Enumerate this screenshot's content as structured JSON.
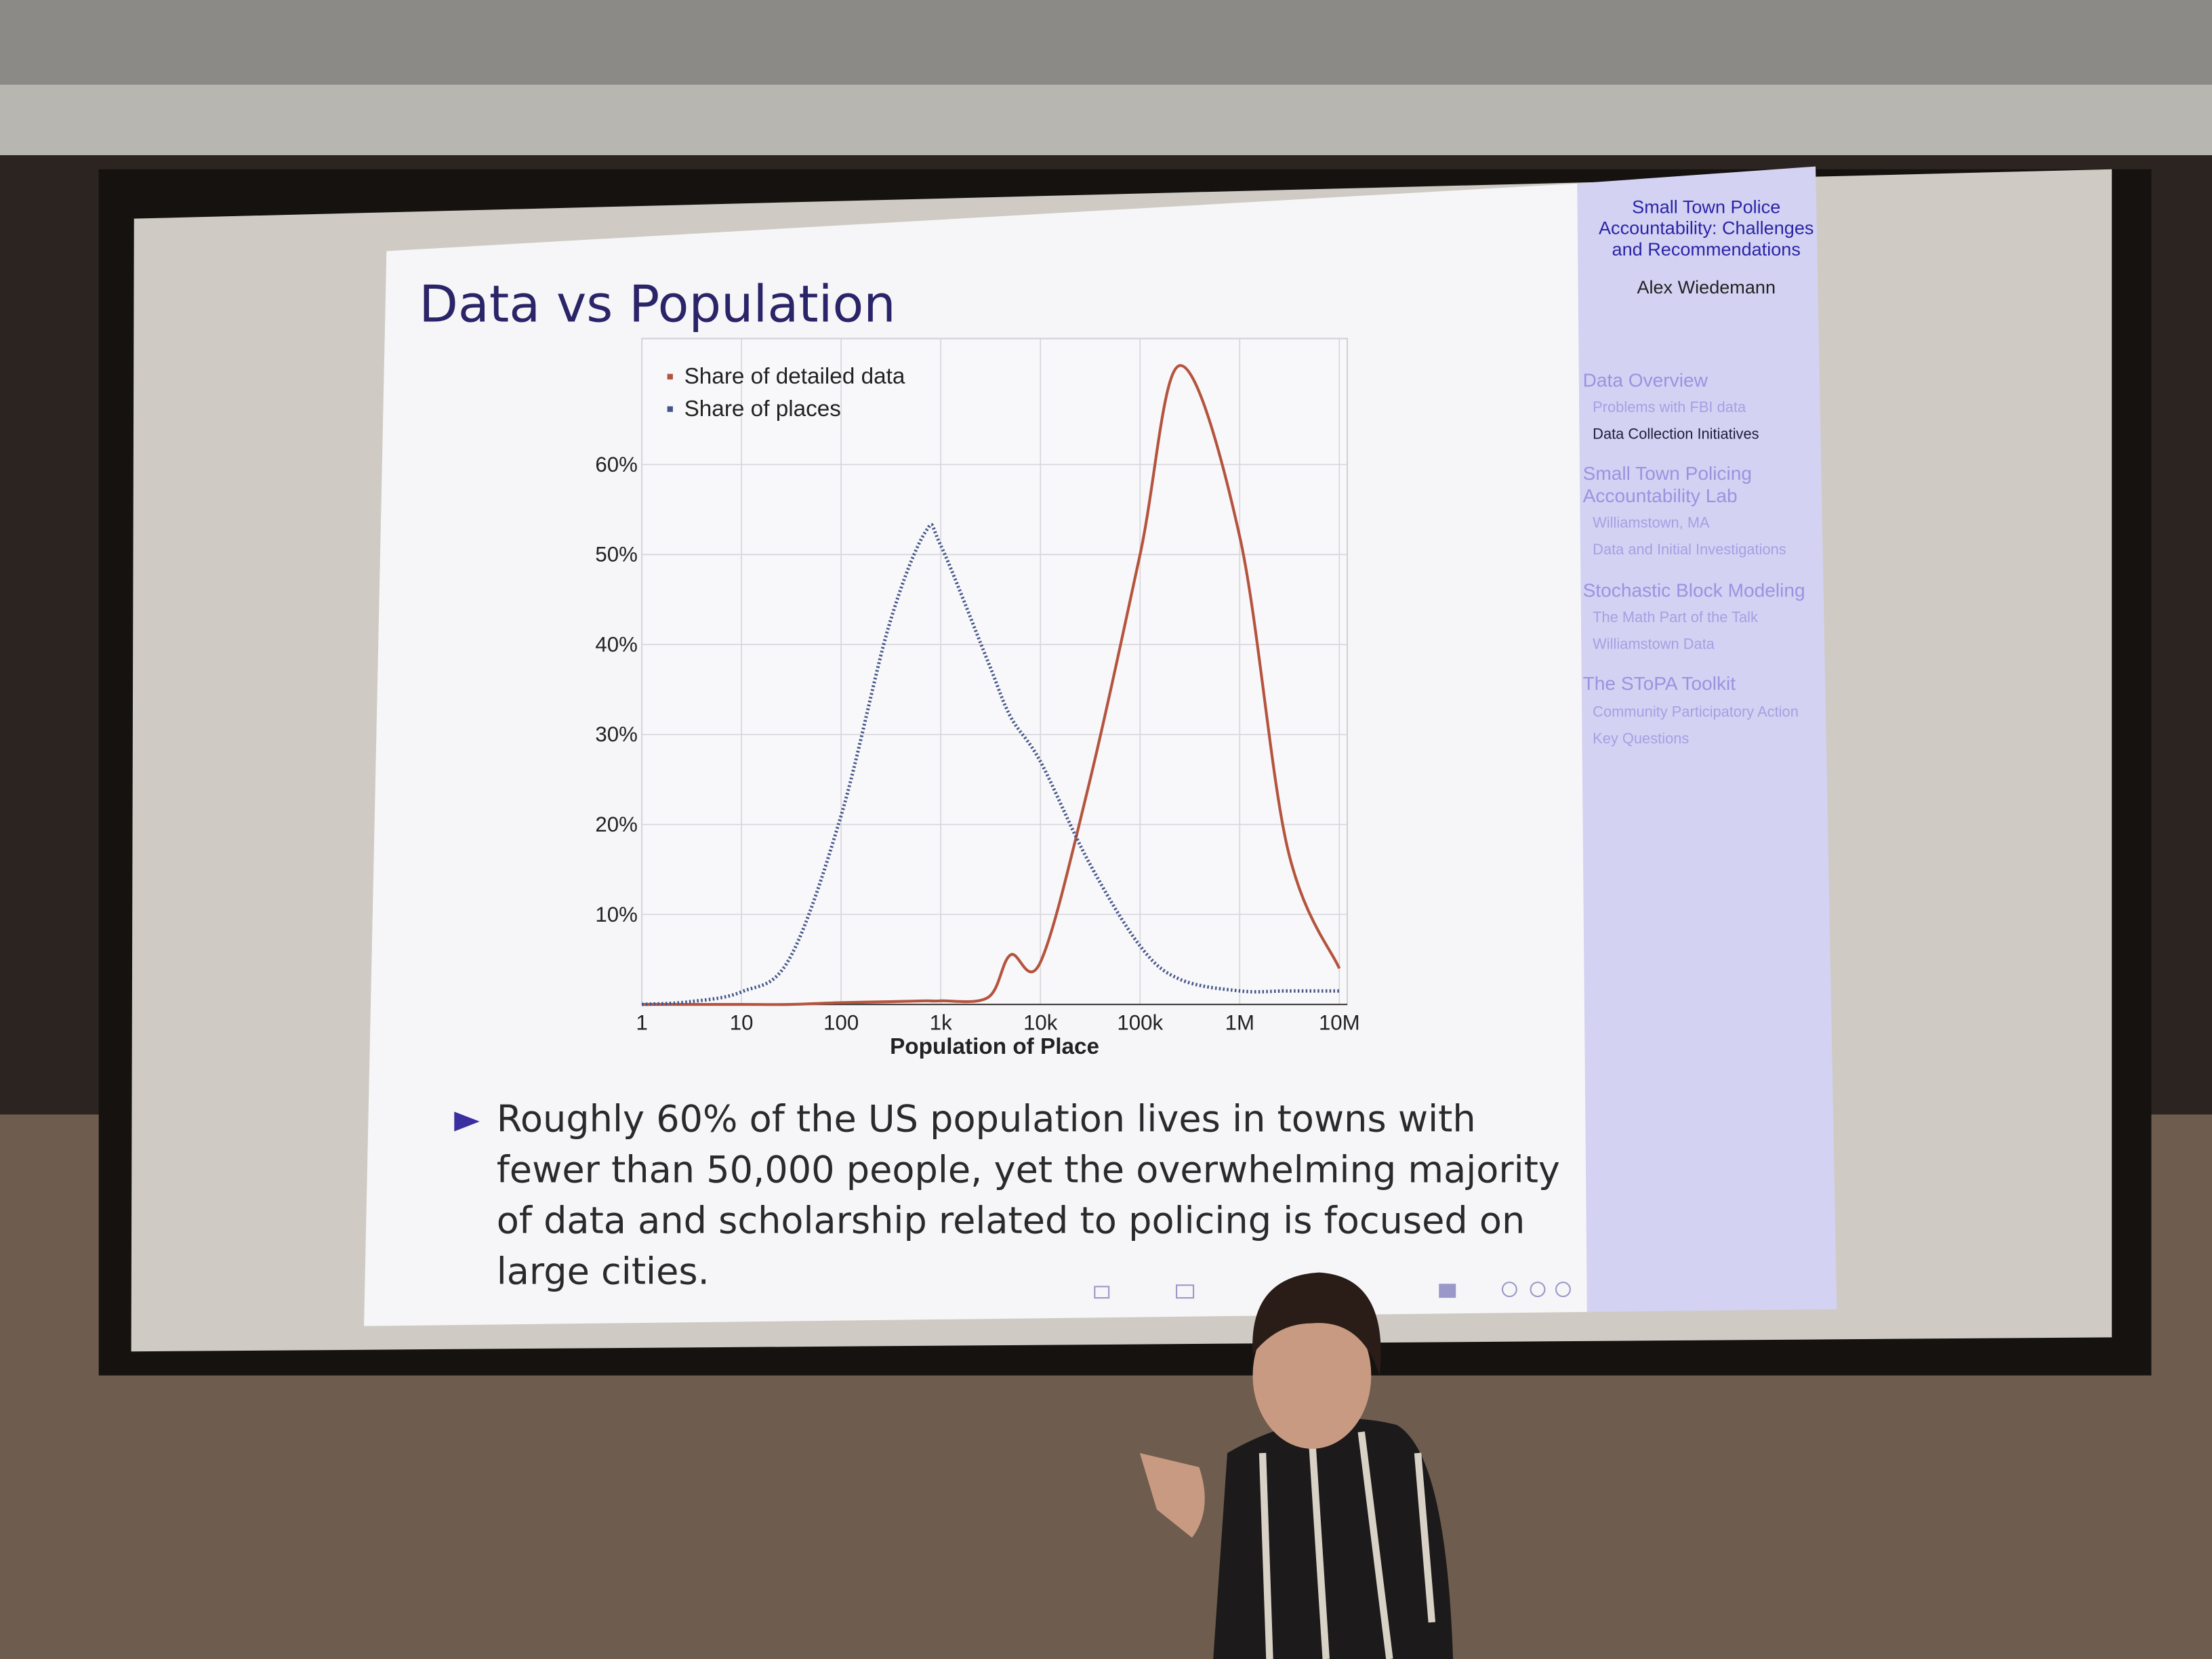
{
  "slide_title": "Data vs Population",
  "bullet_lines": [
    "Roughly 60% of the US population lives in towns with",
    "fewer than 50,000 people, yet the overwhelming majority",
    "of data and scholarship related to policing is focused on",
    "large cities."
  ],
  "sidebar": {
    "title": "Small Town Police Accountability: Challenges and Recommendations",
    "author": "Alex Wiedemann",
    "sections": [
      {
        "title": "Data Overview",
        "items": [
          "Problems with FBI data",
          "Data Collection Initiatives"
        ]
      },
      {
        "title": "Small Town Policing Accountability Lab",
        "items": [
          "Williamstown, MA",
          "Data and Initial Investigations"
        ]
      },
      {
        "title": "Stochastic Block Modeling",
        "items": [
          "The Math Part of the Talk",
          "Williamstown Data"
        ]
      },
      {
        "title": "The SToPA Toolkit",
        "items": [
          "Community Participatory Action",
          "Key Questions"
        ]
      }
    ]
  },
  "chart_data": {
    "type": "line",
    "x_label": "Population of Place",
    "x": [
      1,
      3,
      10,
      30,
      100,
      300,
      700,
      1000,
      3000,
      5000,
      10000,
      30000,
      100000,
      250000,
      1000000,
      3000000,
      10000000
    ],
    "series": [
      {
        "name": "Share of detailed data",
        "color": "#b5543e",
        "line_style": "solid",
        "values": [
          0,
          0,
          0,
          0,
          0.2,
          0.3,
          0.4,
          0.4,
          0.8,
          5.5,
          4.7,
          24,
          50,
          71,
          52,
          17.5,
          4
        ]
      },
      {
        "name": "Share of places",
        "color": "#45558a",
        "line_style": "dotted",
        "values": [
          0,
          0.3,
          1.4,
          5,
          21,
          42,
          52.5,
          51,
          38,
          32,
          27,
          16,
          6.5,
          2.8,
          1.5,
          1.5,
          1.5
        ]
      }
    ],
    "xscale": "log",
    "xlim": [
      1,
      12000000
    ],
    "xticks": [
      1,
      10,
      100,
      {
        "value": 1000,
        "label": "1k"
      },
      {
        "value": 10000,
        "label": "10k"
      },
      {
        "value": 100000,
        "label": "100k"
      },
      {
        "value": 1000000,
        "label": "1M"
      },
      {
        "value": 10000000,
        "label": "10M"
      }
    ],
    "ylim": [
      0,
      74
    ],
    "yticks": [
      {
        "value": 10,
        "label": "10%"
      },
      {
        "value": 20,
        "label": "20%"
      },
      {
        "value": 30,
        "label": "30%"
      },
      {
        "value": 40,
        "label": "40%"
      },
      {
        "value": 50,
        "label": "50%"
      },
      {
        "value": 60,
        "label": "60%"
      }
    ],
    "grid": true,
    "legend_position": "upper left"
  }
}
